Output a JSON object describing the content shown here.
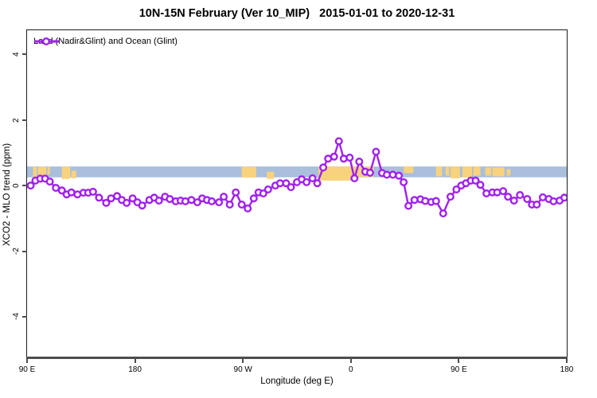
{
  "chart_data": {
    "type": "line",
    "title": "10N-15N February (Ver 10_MIP)   2015-01-01 to 2020-12-31",
    "xlabel": "Longitude (deg E)",
    "ylabel": "XCO2 - MLO trend (ppm)",
    "xlim": [
      90,
      540
    ],
    "ylim": [
      -5.26,
      4.73
    ],
    "grid": false,
    "background": "#ffffff",
    "axis_color": "#4d4d4d",
    "x_ticks": [
      {
        "value": 90,
        "label": "90 E"
      },
      {
        "value": 180,
        "label": "180"
      },
      {
        "value": 270,
        "label": "90 W"
      },
      {
        "value": 360,
        "label": "0"
      },
      {
        "value": 450,
        "label": "90 E"
      },
      {
        "value": 540,
        "label": "180"
      }
    ],
    "y_ticks": [
      {
        "value": -4,
        "label": "-4"
      },
      {
        "value": -2,
        "label": "-2"
      },
      {
        "value": 0,
        "label": "0"
      },
      {
        "value": 2,
        "label": "2"
      },
      {
        "value": 4,
        "label": "4"
      }
    ],
    "legend": {
      "position": "top-left",
      "entries": [
        {
          "label": "Land (Nadir&Glint) and Ocean (Glint)",
          "color": "#A020F0",
          "marker": "open-circle"
        }
      ]
    },
    "reference_band": {
      "v_from": 0.25,
      "v_to": 0.58,
      "color": "#A9BFDC",
      "full_width": true
    },
    "highlight_patches": {
      "color": "#F9D27E",
      "items": [
        [
          95,
          98,
          0.27,
          0.57
        ],
        [
          99,
          106,
          0.12,
          0.57
        ],
        [
          107,
          109,
          0.33,
          0.57
        ],
        [
          119,
          126,
          0.2,
          0.57
        ],
        [
          127,
          131,
          0.22,
          0.45
        ],
        [
          269,
          281,
          0.24,
          0.57
        ],
        [
          290,
          296,
          0.2,
          0.42
        ],
        [
          333,
          364,
          0.15,
          0.58
        ],
        [
          364,
          379,
          0.26,
          0.58
        ],
        [
          404,
          412,
          0.38,
          0.58
        ],
        [
          431,
          436,
          0.28,
          0.58
        ],
        [
          439,
          442,
          0.3,
          0.58
        ],
        [
          443,
          451,
          0.22,
          0.58
        ],
        [
          453,
          461,
          0.25,
          0.58
        ],
        [
          462,
          468,
          0.3,
          0.58
        ],
        [
          472,
          477,
          0.3,
          0.55
        ],
        [
          478,
          488,
          0.28,
          0.55
        ],
        [
          490,
          493,
          0.3,
          0.5
        ]
      ]
    },
    "series": [
      {
        "name": "Land (Nadir&Glint) and Ocean (Glint)",
        "color": "#A020F0",
        "marker": "open-circle",
        "points": [
          [
            93,
            0.0
          ],
          [
            97,
            0.15
          ],
          [
            101,
            0.21
          ],
          [
            105,
            0.21
          ],
          [
            109,
            0.12
          ],
          [
            114,
            -0.07
          ],
          [
            119,
            -0.15
          ],
          [
            123,
            -0.27
          ],
          [
            127,
            -0.21
          ],
          [
            132,
            -0.27
          ],
          [
            137,
            -0.22
          ],
          [
            141,
            -0.22
          ],
          [
            145,
            -0.19
          ],
          [
            150,
            -0.37
          ],
          [
            156,
            -0.53
          ],
          [
            160,
            -0.39
          ],
          [
            165,
            -0.32
          ],
          [
            169,
            -0.44
          ],
          [
            173,
            -0.53
          ],
          [
            178,
            -0.39
          ],
          [
            182,
            -0.51
          ],
          [
            186,
            -0.61
          ],
          [
            192,
            -0.44
          ],
          [
            196,
            -0.37
          ],
          [
            200,
            -0.46
          ],
          [
            205,
            -0.34
          ],
          [
            209,
            -0.41
          ],
          [
            214,
            -0.48
          ],
          [
            218,
            -0.46
          ],
          [
            222,
            -0.48
          ],
          [
            227,
            -0.44
          ],
          [
            232,
            -0.51
          ],
          [
            236,
            -0.39
          ],
          [
            240,
            -0.44
          ],
          [
            244,
            -0.48
          ],
          [
            250,
            -0.51
          ],
          [
            254,
            -0.34
          ],
          [
            259,
            -0.58
          ],
          [
            264,
            -0.21
          ],
          [
            269,
            -0.58
          ],
          [
            274,
            -0.7
          ],
          [
            279,
            -0.39
          ],
          [
            283,
            -0.21
          ],
          [
            287,
            -0.24
          ],
          [
            291,
            -0.12
          ],
          [
            297,
            0.0
          ],
          [
            301,
            0.07
          ],
          [
            306,
            0.07
          ],
          [
            310,
            -0.05
          ],
          [
            315,
            0.1
          ],
          [
            319,
            0.19
          ],
          [
            323,
            0.1
          ],
          [
            328,
            0.22
          ],
          [
            332,
            0.07
          ],
          [
            337,
            0.55
          ],
          [
            341,
            0.82
          ],
          [
            346,
            0.88
          ],
          [
            350,
            1.35
          ],
          [
            354,
            0.82
          ],
          [
            359,
            0.85
          ],
          [
            363,
            0.22
          ],
          [
            367,
            0.73
          ],
          [
            372,
            0.42
          ],
          [
            376,
            0.39
          ],
          [
            381,
            1.03
          ],
          [
            386,
            0.38
          ],
          [
            390,
            0.33
          ],
          [
            395,
            0.33
          ],
          [
            400,
            0.3
          ],
          [
            404,
            0.1
          ],
          [
            408,
            -0.62
          ],
          [
            413,
            -0.44
          ],
          [
            418,
            -0.42
          ],
          [
            422,
            -0.47
          ],
          [
            427,
            -0.5
          ],
          [
            431,
            -0.47
          ],
          [
            437,
            -0.85
          ],
          [
            443,
            -0.34
          ],
          [
            448,
            -0.12
          ],
          [
            452,
            0.0
          ],
          [
            456,
            0.07
          ],
          [
            460,
            0.15
          ],
          [
            464,
            0.15
          ],
          [
            468,
            0.02
          ],
          [
            473,
            -0.24
          ],
          [
            478,
            -0.21
          ],
          [
            482,
            -0.21
          ],
          [
            487,
            -0.17
          ],
          [
            491,
            -0.34
          ],
          [
            496,
            -0.46
          ],
          [
            501,
            -0.29
          ],
          [
            507,
            -0.41
          ],
          [
            511,
            -0.58
          ],
          [
            515,
            -0.58
          ],
          [
            520,
            -0.36
          ],
          [
            525,
            -0.41
          ],
          [
            529,
            -0.48
          ],
          [
            534,
            -0.46
          ],
          [
            538,
            -0.37
          ]
        ]
      }
    ]
  }
}
